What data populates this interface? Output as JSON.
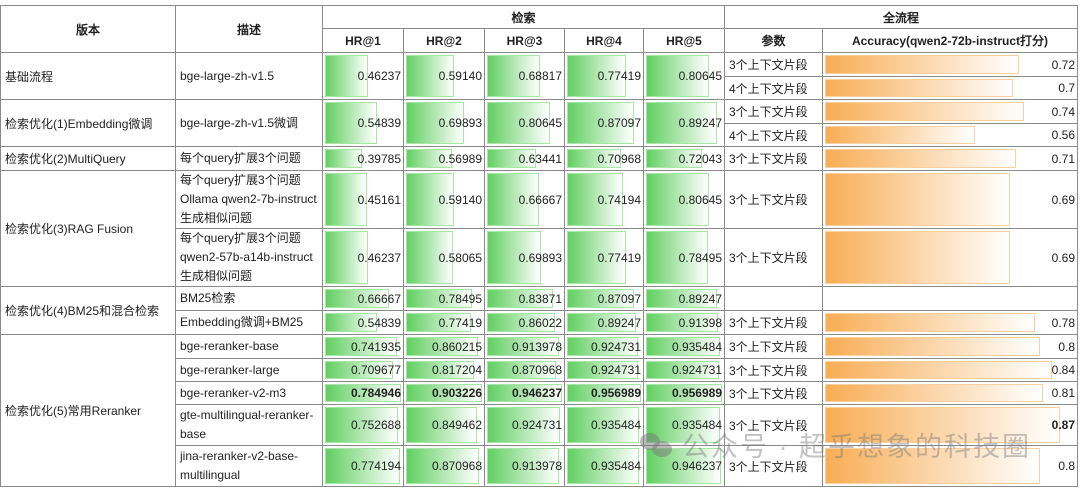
{
  "header": {
    "version": "版本",
    "desc": "描述",
    "retrieval": "检索",
    "pipeline": "全流程",
    "hr": [
      "HR@1",
      "HR@2",
      "HR@3",
      "HR@4",
      "HR@5"
    ],
    "param": "参数",
    "accuracy": "Accuracy(qwen2-72b-instruct打分)"
  },
  "colors": {
    "hr_bar": "#62cf62",
    "acc_bar": "#f8ad55",
    "border": "#8a8a8a"
  },
  "groups": [
    {
      "version": "基础流程",
      "items": [
        {
          "desc": "bge-large-zh-v1.5",
          "hr": [
            "0.46237",
            "0.59140",
            "0.68817",
            "0.77419",
            "0.80645"
          ],
          "contexts": [
            {
              "param": "3个上下文片段",
              "acc": "0.72"
            },
            {
              "param": "4个上下文片段",
              "acc": "0.7"
            }
          ]
        }
      ]
    },
    {
      "version": "检索优化(1)Embedding微调",
      "items": [
        {
          "desc": "bge-large-zh-v1.5微调",
          "hr": [
            "0.54839",
            "0.69893",
            "0.80645",
            "0.87097",
            "0.89247"
          ],
          "contexts": [
            {
              "param": "3个上下文片段",
              "acc": "0.74"
            },
            {
              "param": "4个上下文片段",
              "acc": "0.56"
            }
          ]
        }
      ]
    },
    {
      "version": "检索优化(2)MultiQuery",
      "items": [
        {
          "desc": "每个query扩展3个问题",
          "hr": [
            "0.39785",
            "0.56989",
            "0.63441",
            "0.70968",
            "0.72043"
          ],
          "contexts": [
            {
              "param": "3个上下文片段",
              "acc": "0.71"
            }
          ]
        }
      ]
    },
    {
      "version": "检索优化(3)RAG Fusion",
      "items": [
        {
          "desc": "每个query扩展3个问题 Ollama qwen2-7b-instruct生成相似问题",
          "hr": [
            "0.45161",
            "0.59140",
            "0.66667",
            "0.74194",
            "0.80645"
          ],
          "contexts": [
            {
              "param": "3个上下文片段",
              "acc": "0.69"
            }
          ]
        },
        {
          "desc": "每个query扩展3个问题 qwen2-57b-a14b-instruct生成相似问题",
          "hr": [
            "0.46237",
            "0.58065",
            "0.69893",
            "0.77419",
            "0.78495"
          ],
          "contexts": [
            {
              "param": "3个上下文片段",
              "acc": "0.69"
            }
          ]
        }
      ]
    },
    {
      "version": "检索优化(4)BM25和混合检索",
      "items": [
        {
          "desc": "BM25检索",
          "hr": [
            "0.66667",
            "0.78495",
            "0.83871",
            "0.87097",
            "0.89247"
          ],
          "contexts": [
            {
              "param": "",
              "acc": ""
            }
          ]
        },
        {
          "desc": "Embedding微调+BM25",
          "hr": [
            "0.54839",
            "0.77419",
            "0.86022",
            "0.89247",
            "0.91398"
          ],
          "contexts": [
            {
              "param": "3个上下文片段",
              "acc": "0.78"
            }
          ]
        }
      ]
    },
    {
      "version": "检索优化(5)常用Reranker",
      "items": [
        {
          "desc": "bge-reranker-base",
          "hr": [
            "0.741935",
            "0.860215",
            "0.913978",
            "0.924731",
            "0.935484"
          ],
          "contexts": [
            {
              "param": "3个上下文片段",
              "acc": "0.8"
            }
          ]
        },
        {
          "desc": "bge-reranker-large",
          "hr": [
            "0.709677",
            "0.817204",
            "0.870968",
            "0.924731",
            "0.924731"
          ],
          "contexts": [
            {
              "param": "3个上下文片段",
              "acc": "0.84"
            }
          ]
        },
        {
          "desc": "bge-reranker-v2-m3",
          "bold_hr": true,
          "hr": [
            "0.784946",
            "0.903226",
            "0.946237",
            "0.956989",
            "0.956989"
          ],
          "contexts": [
            {
              "param": "3个上下文片段",
              "acc": "0.81"
            }
          ]
        },
        {
          "desc": "gte-multilingual-reranker-base",
          "bold_acc": true,
          "hr": [
            "0.752688",
            "0.849462",
            "0.924731",
            "0.935484",
            "0.935484"
          ],
          "contexts": [
            {
              "param": "3个上下文片段",
              "acc": "0.87"
            }
          ]
        },
        {
          "desc": "jina-reranker-v2-base-multilingual",
          "hr": [
            "0.774194",
            "0.870968",
            "0.913978",
            "0.935484",
            "0.946237"
          ],
          "contexts": [
            {
              "param": "3个上下文片段",
              "acc": "0.8"
            }
          ]
        }
      ]
    }
  ],
  "watermark": "公众号 · 超乎想象的科技圈"
}
